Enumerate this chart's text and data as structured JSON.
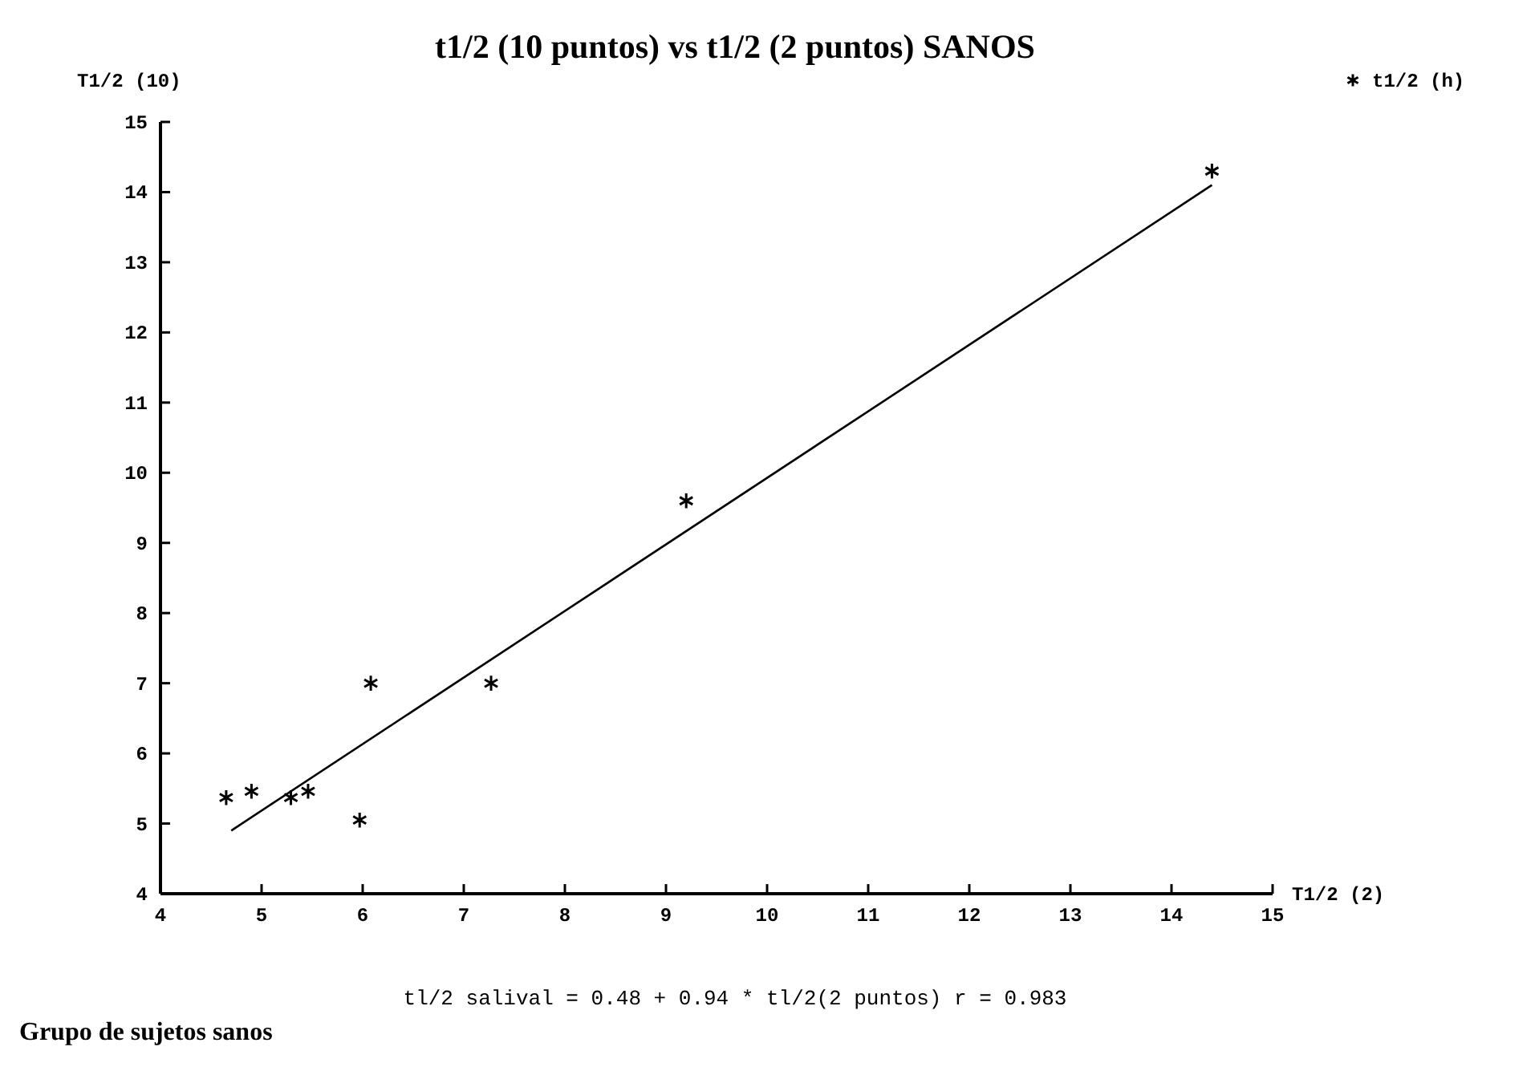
{
  "chart_data": {
    "type": "scatter",
    "title": "t1/2 (10 puntos) vs t1/2 (2 puntos) SANOS",
    "xlabel": "T1/2 (2)",
    "ylabel": "T1/2 (10)",
    "xlim": [
      4,
      15
    ],
    "xticks": [
      4,
      5,
      6,
      7,
      8,
      9,
      10,
      11,
      12,
      13,
      14,
      15
    ],
    "ylim": [
      4,
      15
    ],
    "yticks": [
      4,
      5,
      6,
      7,
      8,
      9,
      10,
      11,
      12,
      13,
      14,
      15
    ],
    "series": [
      {
        "name": "t1/2 (h)",
        "color": "#000000",
        "marker": "cross",
        "x": [
          4.65,
          4.9,
          5.29,
          5.46,
          5.97,
          6.08,
          7.27,
          9.2,
          14.4
        ],
        "values": [
          5.37,
          5.46,
          5.37,
          5.46,
          5.05,
          7.0,
          7.0,
          9.6,
          14.3
        ]
      },
      {
        "type": "line",
        "color": "#000000",
        "x": [
          4.7,
          14.4
        ],
        "values": [
          4.9,
          14.1
        ]
      }
    ],
    "legend": "top right",
    "grid": false,
    "annotations": [
      "tl/2 salival = 0.48 + 0.94 * tl/2(2 puntos) r = 0.983",
      "Grupo de sujetos sanos"
    ]
  }
}
